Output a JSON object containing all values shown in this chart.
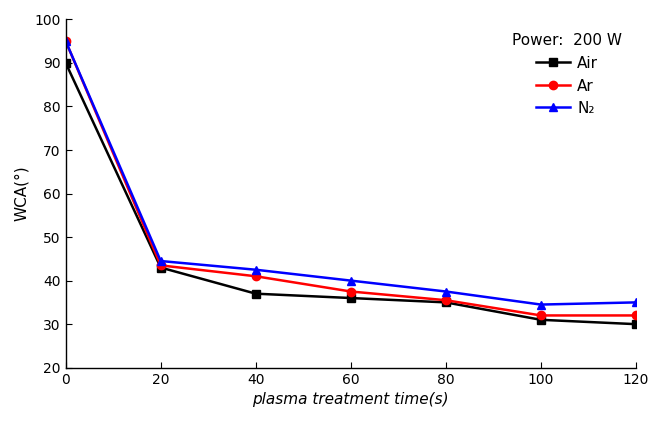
{
  "x": [
    0,
    20,
    40,
    60,
    80,
    100,
    120
  ],
  "air_y": [
    90,
    43,
    37,
    36,
    35,
    31,
    30
  ],
  "ar_y": [
    95,
    43.5,
    41,
    37.5,
    35.5,
    32,
    32
  ],
  "n2_y": [
    95,
    44.5,
    42.5,
    40,
    37.5,
    34.5,
    35
  ],
  "air_color": "#000000",
  "ar_color": "#ff0000",
  "n2_color": "#0000ff",
  "xlabel": "plasma treatment time(s)",
  "ylabel": "WCA(°)",
  "xlim": [
    0,
    120
  ],
  "ylim": [
    20,
    100
  ],
  "yticks": [
    20,
    30,
    40,
    50,
    60,
    70,
    80,
    90,
    100
  ],
  "xticks": [
    0,
    20,
    40,
    60,
    80,
    100,
    120
  ],
  "legend_title": "Power:  200 W",
  "legend_labels": [
    "Air",
    "Ar",
    "N₂"
  ],
  "linewidth": 1.8,
  "markersize": 6,
  "bg_color": "#ffffff"
}
